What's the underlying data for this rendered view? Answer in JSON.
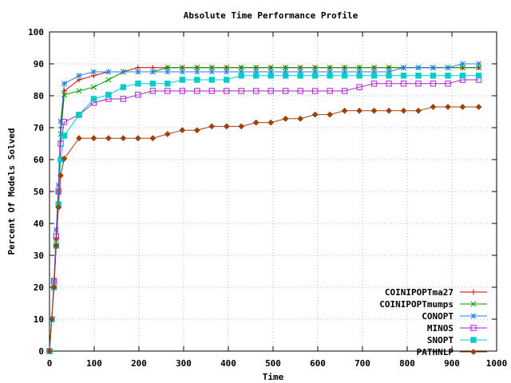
{
  "chart_data": {
    "type": "line",
    "title": "Absolute Time Performance Profile",
    "xlabel": "Time",
    "ylabel": "Percent Of Models Solved",
    "xlim": [
      0,
      1000
    ],
    "ylim": [
      0,
      100
    ],
    "x_ticks": [
      "0",
      "100",
      "200",
      "300",
      "400",
      "500",
      "600",
      "700",
      "800",
      "900",
      "1000"
    ],
    "y_ticks": [
      "0",
      "10",
      "20",
      "30",
      "40",
      "50",
      "60",
      "70",
      "80",
      "90",
      "100"
    ],
    "grid": true,
    "legend_position": "bottom-right",
    "series": [
      {
        "name": "COINIPOPTma27",
        "color": "#cc0000",
        "marker": "plus",
        "points": [
          [
            0,
            0
          ],
          [
            5,
            10
          ],
          [
            10,
            20
          ],
          [
            15,
            35
          ],
          [
            20,
            50
          ],
          [
            25,
            70
          ],
          [
            33,
            81.5
          ],
          [
            66,
            85
          ],
          [
            99,
            86.3
          ],
          [
            132,
            87.5
          ],
          [
            165,
            87.5
          ],
          [
            198,
            88.8
          ],
          [
            231,
            88.8
          ],
          [
            264,
            88.8
          ],
          [
            297,
            88.8
          ],
          [
            330,
            88.8
          ],
          [
            363,
            88.8
          ],
          [
            396,
            88.8
          ],
          [
            429,
            88.8
          ],
          [
            462,
            88.8
          ],
          [
            495,
            88.8
          ],
          [
            528,
            88.8
          ],
          [
            561,
            88.8
          ],
          [
            594,
            88.8
          ],
          [
            627,
            88.8
          ],
          [
            660,
            88.8
          ],
          [
            693,
            88.8
          ],
          [
            726,
            88.8
          ],
          [
            759,
            88.8
          ],
          [
            792,
            88.8
          ],
          [
            825,
            88.8
          ],
          [
            858,
            88.8
          ],
          [
            891,
            88.8
          ],
          [
            924,
            88.8
          ],
          [
            960,
            88.8
          ]
        ]
      },
      {
        "name": "COINIPOPTmumps",
        "color": "#009900",
        "marker": "x",
        "points": [
          [
            0,
            0
          ],
          [
            5,
            10
          ],
          [
            10,
            20
          ],
          [
            15,
            35
          ],
          [
            20,
            50
          ],
          [
            25,
            68
          ],
          [
            33,
            80.3
          ],
          [
            66,
            81.5
          ],
          [
            99,
            82.7
          ],
          [
            132,
            85
          ],
          [
            165,
            87.5
          ],
          [
            198,
            87.5
          ],
          [
            231,
            87.5
          ],
          [
            264,
            88.8
          ],
          [
            297,
            88.8
          ],
          [
            330,
            88.8
          ],
          [
            363,
            88.8
          ],
          [
            396,
            88.8
          ],
          [
            429,
            88.8
          ],
          [
            462,
            88.8
          ],
          [
            495,
            88.8
          ],
          [
            528,
            88.8
          ],
          [
            561,
            88.8
          ],
          [
            594,
            88.8
          ],
          [
            627,
            88.8
          ],
          [
            660,
            88.8
          ],
          [
            693,
            88.8
          ],
          [
            726,
            88.8
          ],
          [
            759,
            88.8
          ],
          [
            792,
            88.8
          ],
          [
            825,
            88.8
          ],
          [
            858,
            88.8
          ],
          [
            891,
            88.8
          ],
          [
            924,
            88.8
          ],
          [
            960,
            88.8
          ]
        ]
      },
      {
        "name": "CONOPT",
        "color": "#1e7fe0",
        "marker": "star",
        "points": [
          [
            0,
            0
          ],
          [
            5,
            10
          ],
          [
            10,
            22
          ],
          [
            15,
            38
          ],
          [
            20,
            52
          ],
          [
            25,
            72
          ],
          [
            33,
            83.8
          ],
          [
            66,
            86.3
          ],
          [
            99,
            87.5
          ],
          [
            132,
            87.5
          ],
          [
            165,
            87.5
          ],
          [
            198,
            87.5
          ],
          [
            231,
            87.5
          ],
          [
            264,
            87.5
          ],
          [
            297,
            87.5
          ],
          [
            330,
            87.5
          ],
          [
            363,
            87.5
          ],
          [
            396,
            87.5
          ],
          [
            429,
            87.5
          ],
          [
            462,
            87.5
          ],
          [
            495,
            87.5
          ],
          [
            528,
            87.5
          ],
          [
            561,
            87.5
          ],
          [
            594,
            87.5
          ],
          [
            627,
            87.5
          ],
          [
            660,
            87.5
          ],
          [
            693,
            87.5
          ],
          [
            726,
            87.5
          ],
          [
            759,
            87.5
          ],
          [
            792,
            88.8
          ],
          [
            825,
            88.8
          ],
          [
            858,
            88.8
          ],
          [
            891,
            88.8
          ],
          [
            924,
            90
          ],
          [
            960,
            90
          ]
        ]
      },
      {
        "name": "MINOS",
        "color": "#aa22cc",
        "marker": "square",
        "points": [
          [
            0,
            0
          ],
          [
            5,
            10
          ],
          [
            10,
            22
          ],
          [
            15,
            36
          ],
          [
            20,
            50
          ],
          [
            25,
            65
          ],
          [
            33,
            71.8
          ],
          [
            66,
            74
          ],
          [
            99,
            77.8
          ],
          [
            132,
            79
          ],
          [
            165,
            79
          ],
          [
            198,
            80.3
          ],
          [
            231,
            81.5
          ],
          [
            264,
            81.5
          ],
          [
            297,
            81.5
          ],
          [
            330,
            81.5
          ],
          [
            363,
            81.5
          ],
          [
            396,
            81.5
          ],
          [
            429,
            81.5
          ],
          [
            462,
            81.5
          ],
          [
            495,
            81.5
          ],
          [
            528,
            81.5
          ],
          [
            561,
            81.5
          ],
          [
            594,
            81.5
          ],
          [
            627,
            81.5
          ],
          [
            660,
            81.5
          ],
          [
            693,
            82.7
          ],
          [
            726,
            83.8
          ],
          [
            759,
            83.8
          ],
          [
            792,
            83.8
          ],
          [
            825,
            83.8
          ],
          [
            858,
            83.8
          ],
          [
            891,
            83.8
          ],
          [
            924,
            85
          ],
          [
            960,
            85
          ]
        ]
      },
      {
        "name": "SNOPT",
        "color": "#00cccc",
        "marker": "filled-square",
        "points": [
          [
            0,
            0
          ],
          [
            5,
            10
          ],
          [
            10,
            20
          ],
          [
            15,
            33
          ],
          [
            20,
            46
          ],
          [
            25,
            60
          ],
          [
            33,
            67.5
          ],
          [
            66,
            74
          ],
          [
            99,
            79
          ],
          [
            132,
            80.3
          ],
          [
            165,
            82.7
          ],
          [
            198,
            83.8
          ],
          [
            231,
            83.8
          ],
          [
            264,
            83.8
          ],
          [
            297,
            85
          ],
          [
            330,
            85
          ],
          [
            363,
            85
          ],
          [
            396,
            85
          ],
          [
            429,
            86.3
          ],
          [
            462,
            86.3
          ],
          [
            495,
            86.3
          ],
          [
            528,
            86.3
          ],
          [
            561,
            86.3
          ],
          [
            594,
            86.3
          ],
          [
            627,
            86.3
          ],
          [
            660,
            86.3
          ],
          [
            693,
            86.3
          ],
          [
            726,
            86.3
          ],
          [
            759,
            86.3
          ],
          [
            792,
            86.3
          ],
          [
            825,
            86.3
          ],
          [
            858,
            86.3
          ],
          [
            891,
            86.3
          ],
          [
            924,
            86.3
          ],
          [
            960,
            86.3
          ]
        ]
      },
      {
        "name": "PATHNLP",
        "color": "#a0400a",
        "marker": "diamond",
        "points": [
          [
            0,
            0
          ],
          [
            5,
            10
          ],
          [
            10,
            20
          ],
          [
            15,
            33
          ],
          [
            20,
            45
          ],
          [
            25,
            55
          ],
          [
            33,
            60.3
          ],
          [
            66,
            66.7
          ],
          [
            99,
            66.7
          ],
          [
            132,
            66.7
          ],
          [
            165,
            66.7
          ],
          [
            198,
            66.7
          ],
          [
            231,
            66.7
          ],
          [
            264,
            68
          ],
          [
            297,
            69.2
          ],
          [
            330,
            69.2
          ],
          [
            363,
            70.4
          ],
          [
            396,
            70.4
          ],
          [
            429,
            70.4
          ],
          [
            462,
            71.6
          ],
          [
            495,
            71.6
          ],
          [
            528,
            72.8
          ],
          [
            561,
            72.8
          ],
          [
            594,
            74.1
          ],
          [
            627,
            74.1
          ],
          [
            660,
            75.3
          ],
          [
            693,
            75.3
          ],
          [
            726,
            75.3
          ],
          [
            759,
            75.3
          ],
          [
            792,
            75.3
          ],
          [
            825,
            75.3
          ],
          [
            858,
            76.5
          ],
          [
            891,
            76.5
          ],
          [
            924,
            76.5
          ],
          [
            960,
            76.5
          ]
        ]
      }
    ]
  }
}
